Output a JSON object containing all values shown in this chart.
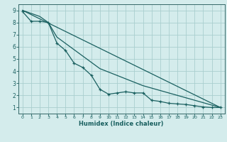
{
  "xlabel": "Humidex (Indice chaleur)",
  "bg_color": "#d4ecec",
  "grid_color": "#aacfcf",
  "line_color": "#1a6060",
  "spine_color": "#336666",
  "xlim": [
    -0.5,
    23.5
  ],
  "ylim": [
    0.5,
    9.5
  ],
  "xticks": [
    0,
    1,
    2,
    3,
    4,
    5,
    6,
    7,
    8,
    9,
    10,
    11,
    12,
    13,
    14,
    15,
    16,
    17,
    18,
    19,
    20,
    21,
    22,
    23
  ],
  "yticks": [
    1,
    2,
    3,
    4,
    5,
    6,
    7,
    8,
    9
  ],
  "line1_x": [
    0,
    23
  ],
  "line1_y": [
    9.0,
    1.0
  ],
  "line2_x": [
    0,
    1,
    2,
    3,
    4,
    5,
    6,
    7,
    8,
    9,
    10,
    11,
    12,
    13,
    14,
    15,
    16,
    17,
    18,
    19,
    20,
    21,
    22,
    23
  ],
  "line2_y": [
    8.9,
    8.1,
    8.1,
    8.0,
    6.3,
    5.7,
    4.65,
    4.3,
    3.65,
    2.5,
    2.1,
    2.2,
    2.3,
    2.2,
    2.2,
    1.6,
    1.5,
    1.35,
    1.3,
    1.25,
    1.15,
    1.05,
    1.0,
    1.0
  ],
  "line3_x": [
    0,
    2,
    3,
    4,
    9,
    14,
    19,
    23
  ],
  "line3_y": [
    9.0,
    8.5,
    8.0,
    6.8,
    4.2,
    2.8,
    1.8,
    1.0
  ]
}
